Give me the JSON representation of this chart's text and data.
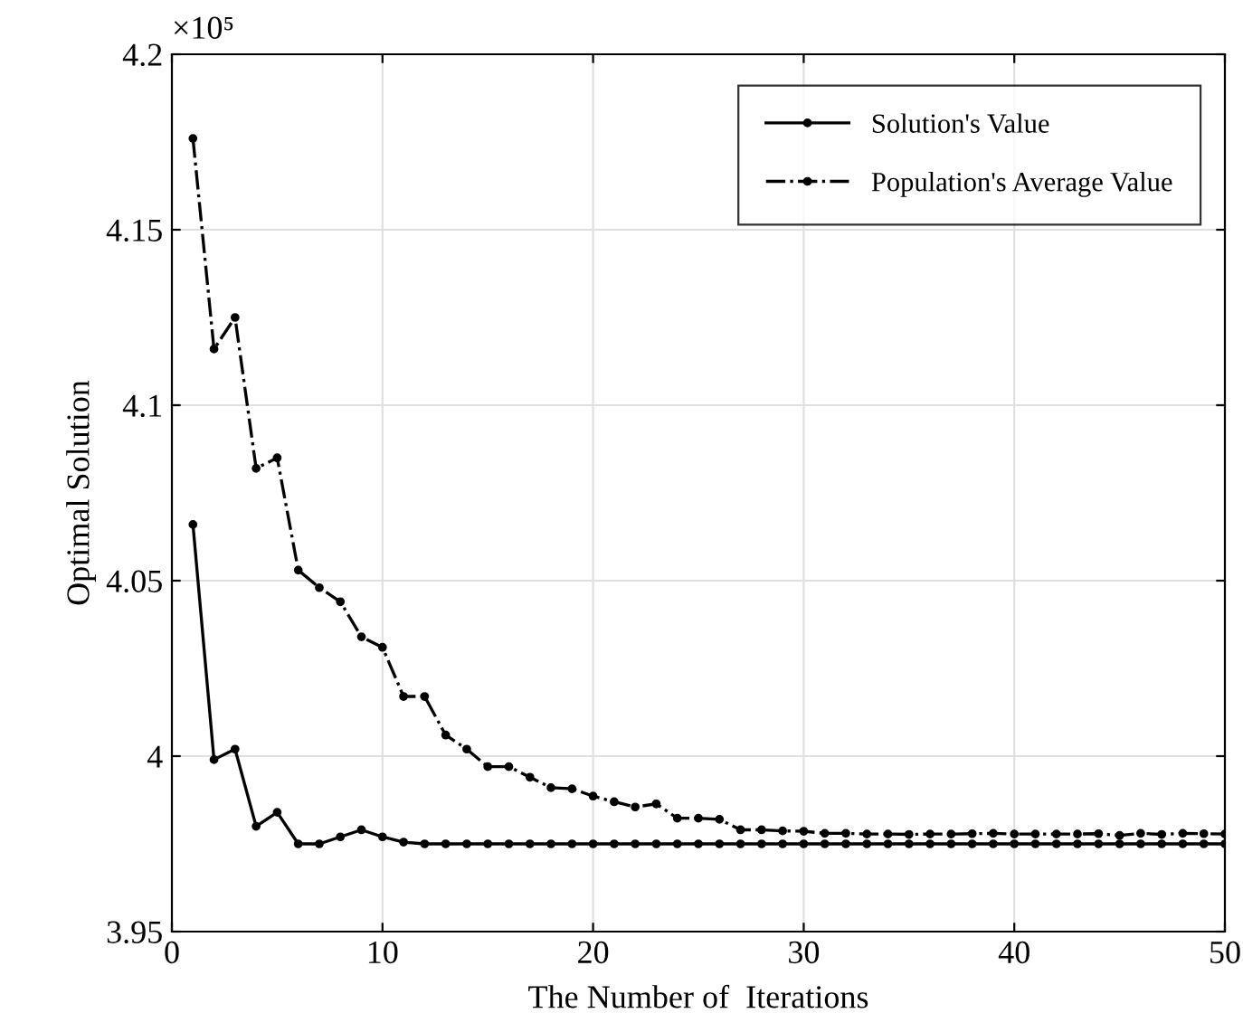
{
  "chart_data": {
    "type": "line",
    "xlabel": "The Number of  Iterations",
    "ylabel": "Optimal Solution",
    "x": [
      1,
      2,
      3,
      4,
      5,
      6,
      7,
      8,
      9,
      10,
      11,
      12,
      13,
      14,
      15,
      16,
      17,
      18,
      19,
      20,
      21,
      22,
      23,
      24,
      25,
      26,
      27,
      28,
      29,
      30,
      31,
      32,
      33,
      34,
      35,
      36,
      37,
      38,
      39,
      40,
      41,
      42,
      43,
      44,
      45,
      46,
      47,
      48,
      49,
      50
    ],
    "series": [
      {
        "name": "Solution's Value",
        "color": "#000000",
        "line_style": "solid",
        "values": [
          4.066,
          3.999,
          4.002,
          3.98,
          3.984,
          3.975,
          3.975,
          3.977,
          3.979,
          3.977,
          3.9755,
          3.975,
          3.975,
          3.975,
          3.975,
          3.975,
          3.975,
          3.975,
          3.975,
          3.975,
          3.975,
          3.975,
          3.975,
          3.975,
          3.975,
          3.975,
          3.975,
          3.975,
          3.975,
          3.975,
          3.975,
          3.975,
          3.975,
          3.975,
          3.975,
          3.975,
          3.975,
          3.975,
          3.975,
          3.975,
          3.975,
          3.975,
          3.975,
          3.975,
          3.975,
          3.975,
          3.975,
          3.975,
          3.975,
          3.975
        ]
      },
      {
        "name": "Population's Average Value",
        "color": "#000000",
        "line_style": "dashdot",
        "values": [
          4.176,
          4.116,
          4.125,
          4.082,
          4.085,
          4.053,
          4.048,
          4.044,
          4.034,
          4.031,
          4.017,
          4.017,
          4.006,
          4.002,
          3.997,
          3.997,
          3.994,
          3.991,
          3.9907,
          3.9886,
          3.987,
          3.9855,
          3.9864,
          3.9823,
          3.9823,
          3.982,
          3.979,
          3.979,
          3.9787,
          3.9786,
          3.978,
          3.978,
          3.9778,
          3.9778,
          3.9777,
          3.9778,
          3.9778,
          3.9779,
          3.978,
          3.9778,
          3.9778,
          3.9778,
          3.9778,
          3.9779,
          3.9774,
          3.978,
          3.9777,
          3.978,
          3.9779,
          3.9778
        ]
      }
    ],
    "xlim": [
      0,
      50
    ],
    "xticks": [
      0,
      10,
      20,
      30,
      40,
      50
    ],
    "ylim": [
      3.95,
      4.2
    ],
    "yticks": [
      3.95,
      4,
      4.05,
      4.1,
      4.15,
      4.2
    ],
    "annotations": [
      "×10⁵"
    ],
    "grid": true,
    "legend": "top right",
    "marker": "circle"
  }
}
